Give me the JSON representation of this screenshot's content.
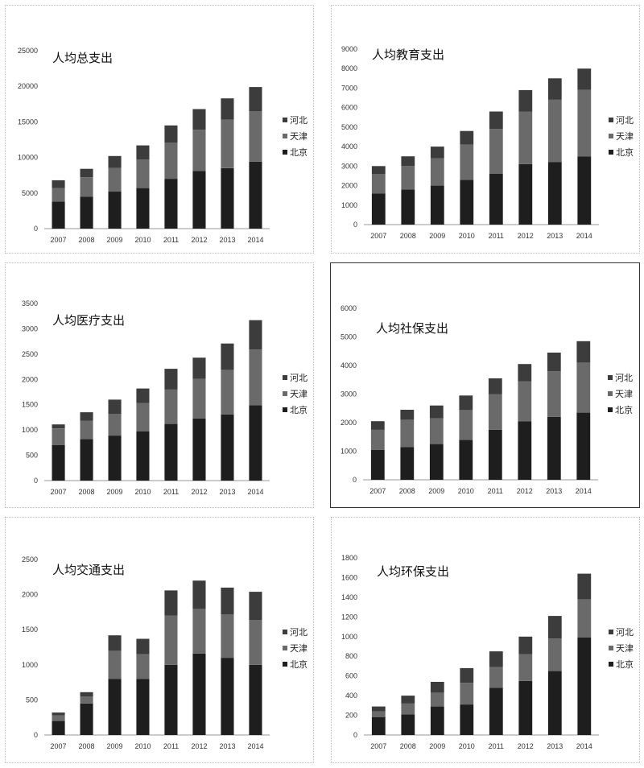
{
  "colors": {
    "北京": "#1e1e1e",
    "天津": "#6a6a6a",
    "河北": "#3c3c3c"
  },
  "chart_data": [
    {
      "type": "bar",
      "stacked": true,
      "title": "人均总支出",
      "categories": [
        "2007",
        "2008",
        "2009",
        "2010",
        "2011",
        "2012",
        "2013",
        "2014"
      ],
      "ylim": [
        0,
        25000
      ],
      "yticks": [
        "0",
        "5000",
        "10000",
        "15000",
        "20000",
        "25000"
      ],
      "legend": [
        "河北",
        "天津",
        "北京"
      ],
      "series": [
        {
          "name": "北京",
          "values": [
            3800,
            4500,
            5200,
            5700,
            7000,
            8100,
            8500,
            9400
          ]
        },
        {
          "name": "天津",
          "values": [
            1900,
            2700,
            3300,
            4000,
            5100,
            5800,
            6800,
            7100
          ]
        },
        {
          "name": "河北",
          "values": [
            1100,
            1200,
            1700,
            2000,
            2400,
            2900,
            3000,
            3400
          ]
        }
      ]
    },
    {
      "type": "bar",
      "stacked": true,
      "title": "人均教育支出",
      "categories": [
        "2007",
        "2008",
        "2009",
        "2010",
        "2011",
        "2012",
        "2013",
        "2014"
      ],
      "ylim": [
        0,
        9000
      ],
      "yticks": [
        "0",
        "1000",
        "2000",
        "3000",
        "4000",
        "5000",
        "6000",
        "7000",
        "8000",
        "9000"
      ],
      "legend": [
        "河北",
        "天津",
        "北京"
      ],
      "series": [
        {
          "name": "北京",
          "values": [
            1600,
            1800,
            2000,
            2300,
            2600,
            3100,
            3200,
            3500
          ]
        },
        {
          "name": "天津",
          "values": [
            1000,
            1200,
            1400,
            1800,
            2300,
            2700,
            3200,
            3400
          ]
        },
        {
          "name": "河北",
          "values": [
            400,
            500,
            600,
            700,
            900,
            1100,
            1100,
            1100
          ]
        }
      ]
    },
    {
      "type": "bar",
      "stacked": true,
      "title": "人均医疗支出",
      "categories": [
        "2007",
        "2008",
        "2009",
        "2010",
        "2011",
        "2012",
        "2013",
        "2014"
      ],
      "ylim": [
        0,
        3500
      ],
      "yticks": [
        "0",
        "500",
        "1000",
        "1500",
        "2000",
        "2500",
        "3000",
        "3500"
      ],
      "legend": [
        "河北",
        "天津",
        "北京"
      ],
      "series": [
        {
          "name": "北京",
          "values": [
            700,
            820,
            890,
            970,
            1120,
            1230,
            1310,
            1490
          ]
        },
        {
          "name": "天津",
          "values": [
            330,
            360,
            430,
            560,
            680,
            780,
            880,
            1100
          ]
        },
        {
          "name": "河北",
          "values": [
            80,
            170,
            280,
            290,
            410,
            420,
            520,
            580
          ]
        }
      ]
    },
    {
      "type": "bar",
      "stacked": true,
      "title": "人均社保支出",
      "categories": [
        "2007",
        "2008",
        "2009",
        "2010",
        "2011",
        "2012",
        "2013",
        "2014"
      ],
      "ylim": [
        0,
        6000
      ],
      "yticks": [
        "0",
        "1000",
        "2000",
        "3000",
        "4000",
        "5000",
        "6000"
      ],
      "legend": [
        "河北",
        "天津",
        "北京"
      ],
      "series": [
        {
          "name": "北京",
          "values": [
            1050,
            1150,
            1250,
            1400,
            1750,
            2050,
            2200,
            2350
          ]
        },
        {
          "name": "天津",
          "values": [
            700,
            950,
            900,
            1050,
            1250,
            1400,
            1600,
            1750
          ]
        },
        {
          "name": "河北",
          "values": [
            300,
            350,
            450,
            500,
            550,
            600,
            650,
            750
          ]
        }
      ]
    },
    {
      "type": "bar",
      "stacked": true,
      "title": "人均交通支出",
      "categories": [
        "2007",
        "2008",
        "2009",
        "2010",
        "2011",
        "2012",
        "2013",
        "2014"
      ],
      "ylim": [
        0,
        2500
      ],
      "yticks": [
        "0",
        "500",
        "1000",
        "1500",
        "2000",
        "2500"
      ],
      "legend": [
        "河北",
        "天津",
        "北京"
      ],
      "series": [
        {
          "name": "北京",
          "values": [
            200,
            450,
            800,
            800,
            1000,
            1160,
            1100,
            1000
          ]
        },
        {
          "name": "天津",
          "values": [
            80,
            100,
            400,
            350,
            700,
            640,
            620,
            640
          ]
        },
        {
          "name": "河北",
          "values": [
            40,
            60,
            220,
            220,
            360,
            400,
            380,
            400
          ]
        }
      ]
    },
    {
      "type": "bar",
      "stacked": true,
      "title": "人均环保支出",
      "categories": [
        "2007",
        "2008",
        "2009",
        "2010",
        "2011",
        "2012",
        "2013",
        "2014"
      ],
      "ylim": [
        0,
        1800
      ],
      "yticks": [
        "0",
        "200",
        "400",
        "600",
        "800",
        "1000",
        "1200",
        "1400",
        "1600",
        "1800"
      ],
      "legend": [
        "河北",
        "天津",
        "北京"
      ],
      "series": [
        {
          "name": "北京",
          "values": [
            180,
            210,
            290,
            310,
            480,
            550,
            650,
            990
          ]
        },
        {
          "name": "天津",
          "values": [
            60,
            110,
            140,
            220,
            210,
            270,
            330,
            390
          ]
        },
        {
          "name": "河北",
          "values": [
            50,
            80,
            110,
            150,
            160,
            180,
            230,
            260
          ]
        }
      ]
    }
  ]
}
